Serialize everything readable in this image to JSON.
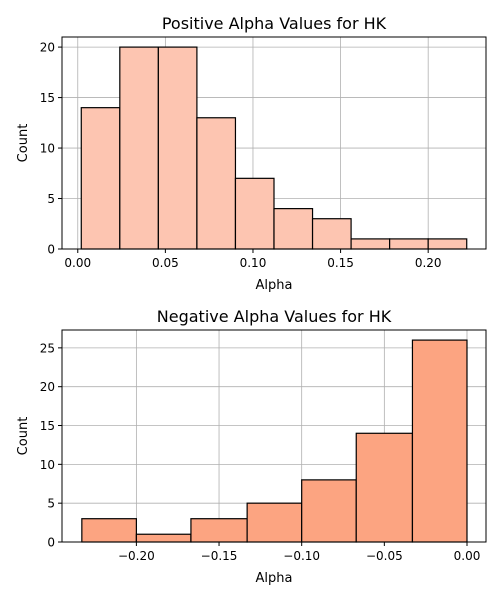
{
  "chart_data": [
    {
      "type": "bar",
      "title": "Positive Alpha Values for HK",
      "xlabel": "Alpha",
      "ylabel": "Count",
      "bar_color": "#fdc5b1",
      "bin_edges": [
        0.002,
        0.024,
        0.046,
        0.068,
        0.09,
        0.112,
        0.134,
        0.156,
        0.178,
        0.2,
        0.222
      ],
      "values": [
        14,
        20,
        20,
        13,
        7,
        4,
        3,
        1,
        1,
        1
      ],
      "xlim": [
        -0.009,
        0.233
      ],
      "ylim": [
        0,
        21
      ],
      "xticks": [
        0.0,
        0.05,
        0.1,
        0.15,
        0.2
      ],
      "xtick_labels": [
        "0.00",
        "0.05",
        "0.10",
        "0.15",
        "0.20"
      ],
      "yticks": [
        0,
        5,
        10,
        15,
        20
      ],
      "ytick_labels": [
        "0",
        "5",
        "10",
        "15",
        "20"
      ],
      "grid": true
    },
    {
      "type": "bar",
      "title": "Negative Alpha Values for HK",
      "xlabel": "Alpha",
      "ylabel": "Count",
      "bar_color": "#fca481",
      "bin_edges": [
        -0.233,
        -0.2,
        -0.167,
        -0.133,
        -0.1,
        -0.067,
        -0.033,
        0.0
      ],
      "values": [
        3,
        1,
        3,
        5,
        8,
        14,
        26
      ],
      "xlim": [
        -0.245,
        0.0115
      ],
      "ylim": [
        0,
        27.3
      ],
      "xticks": [
        -0.2,
        -0.15,
        -0.1,
        -0.05,
        0.0
      ],
      "xtick_labels": [
        "−0.20",
        "−0.15",
        "−0.10",
        "−0.05",
        "0.00"
      ],
      "yticks": [
        0,
        5,
        10,
        15,
        20,
        25
      ],
      "ytick_labels": [
        "0",
        "5",
        "10",
        "15",
        "20",
        "25"
      ],
      "grid": true
    }
  ]
}
